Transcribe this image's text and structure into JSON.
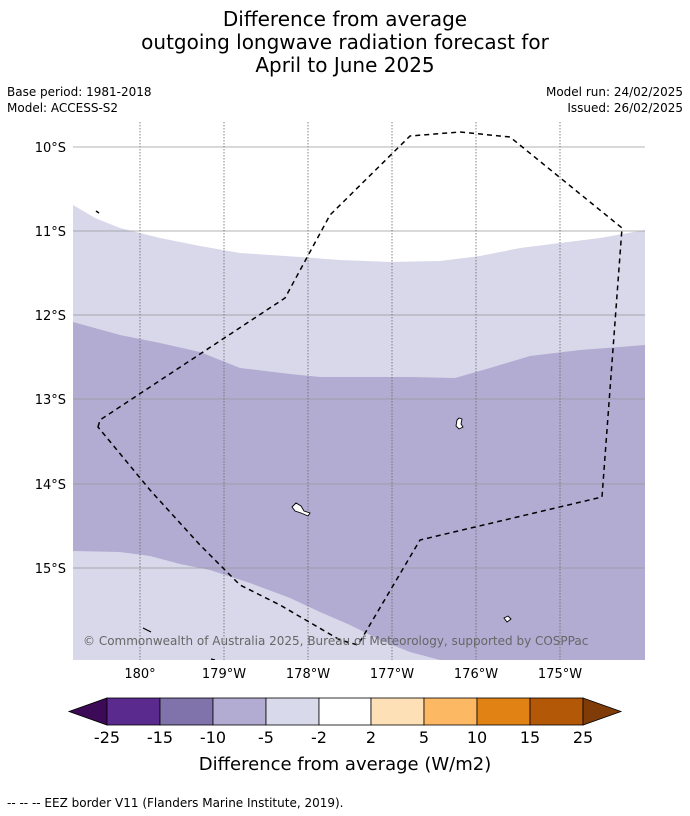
{
  "title": {
    "line1": "Difference from average",
    "line2": "outgoing longwave radiation forecast for",
    "line3": "April to June 2025"
  },
  "meta": {
    "base_period": "Base period: 1981-2018",
    "model": "Model: ACCESS-S2",
    "model_run": "Model run: 24/02/2025",
    "issued": "Issued: 26/02/2025"
  },
  "map": {
    "lat_labels": [
      "10°S",
      "11°S",
      "12°S",
      "13°S",
      "14°S",
      "15°S"
    ],
    "lon_labels": [
      "180°",
      "179°W",
      "178°W",
      "177°W",
      "176°W",
      "175°W"
    ],
    "copyright": "© Commonwealth of Australia 2025, Bureau of Meteorology, supported by COSPPac",
    "fill_colors": {
      "-5 to -2": "#d8d8ea",
      "-10 to -5": "#b2abd2",
      "outside": "#ffffff"
    }
  },
  "colorbar": {
    "label": "Difference from average (W/m2)",
    "ticks": [
      "-25",
      "-15",
      "-10",
      "-5",
      "-2",
      "2",
      "5",
      "10",
      "15",
      "25"
    ],
    "colors": [
      "#3d0a58",
      "#5a2a8e",
      "#8073ac",
      "#b2abd2",
      "#d8daeb",
      "#ffffff",
      "#fee0b6",
      "#fdb863",
      "#e08214",
      "#b35806",
      "#7f3b08"
    ]
  },
  "footer": "--  --  -- EEZ border V11 (Flanders Marine Institute, 2019)."
}
